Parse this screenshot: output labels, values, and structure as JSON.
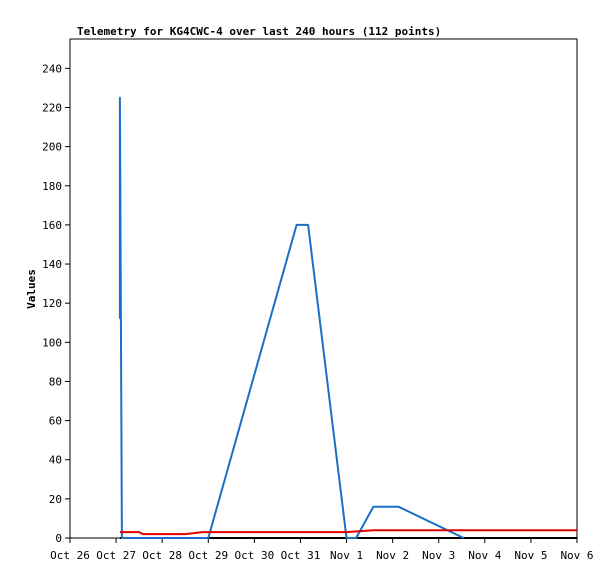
{
  "chart_data": {
    "type": "line",
    "title": "Telemetry for KG4CWC-4 over last 240 hours (112 points)",
    "xlabel": "",
    "ylabel": "Values",
    "xlim": [
      "Oct 26",
      "Nov 6"
    ],
    "ylim": [
      0,
      255
    ],
    "x_ticks": [
      "Oct 26",
      "Oct 27",
      "Oct 28",
      "Oct 29",
      "Oct 30",
      "Oct 31",
      "Nov 1",
      "Nov 2",
      "Nov 3",
      "Nov 4",
      "Nov 5",
      "Nov 6"
    ],
    "y_ticks": [
      0,
      20,
      40,
      60,
      80,
      100,
      120,
      140,
      160,
      180,
      200,
      220,
      240
    ],
    "grid": false,
    "legend": "none",
    "series": [
      {
        "color": "#000000",
        "points": [
          [
            "Oct 27 02:00",
            0
          ],
          [
            "Nov 6 00:00",
            0
          ]
        ]
      },
      {
        "color": "#1a6fc7",
        "points": [
          [
            "Oct 27 02:00",
            112
          ],
          [
            "Oct 27 02:00",
            225
          ],
          [
            "Oct 27 03:00",
            0
          ],
          [
            "Oct 29 00:00",
            0
          ],
          [
            "Oct 30 22:00",
            160
          ],
          [
            "Oct 31 04:00",
            160
          ],
          [
            "Nov 1 00:00",
            0
          ],
          [
            "Nov 1 05:00",
            0
          ],
          [
            "Nov 1 14:00",
            16
          ],
          [
            "Nov 2 03:00",
            16
          ],
          [
            "Nov 3 13:00",
            0
          ]
        ]
      },
      {
        "color": "#e00000",
        "points": [
          [
            "Oct 27 02:00",
            3
          ],
          [
            "Oct 27 12:00",
            3
          ],
          [
            "Oct 27 14:00",
            2
          ],
          [
            "Oct 28 08:00",
            2
          ],
          [
            "Oct 28 12:00",
            2
          ],
          [
            "Oct 28 21:00",
            3
          ],
          [
            "Nov 1 00:00",
            3
          ],
          [
            "Nov 1 14:00",
            4
          ],
          [
            "Nov 6 00:00",
            4
          ]
        ]
      }
    ]
  }
}
